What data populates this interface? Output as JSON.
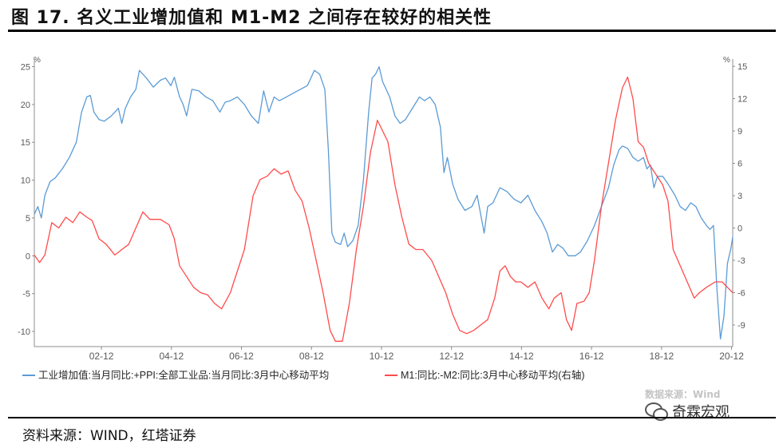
{
  "figure": {
    "title": "图 17. 名义工业增加值和 M1-M2 之间存在较好的相关性",
    "source": "资料来源：WIND，红塔证券",
    "watermark_data": "数据来源：Wind",
    "watermark_brand": "奇霖宏观"
  },
  "chart_data": {
    "type": "line",
    "left_axis": {
      "unit": "%",
      "ylim": [
        -12,
        26
      ],
      "ticks": [
        -10,
        -5,
        0,
        5,
        10,
        15,
        20,
        25
      ]
    },
    "right_axis": {
      "unit": "%",
      "ylim": [
        -11,
        15.67
      ],
      "ticks": [
        -9,
        -6,
        -3,
        0,
        3,
        6,
        9,
        12,
        15
      ]
    },
    "xlim": [
      2001.0,
      2020.95
    ],
    "x_ticks": [
      {
        "value": 2002.917,
        "label": "02-12"
      },
      {
        "value": 2004.917,
        "label": "04-12"
      },
      {
        "value": 2006.917,
        "label": "06-12"
      },
      {
        "value": 2008.917,
        "label": "08-12"
      },
      {
        "value": 2010.917,
        "label": "10-12"
      },
      {
        "value": 2012.917,
        "label": "12-12"
      },
      {
        "value": 2014.917,
        "label": "14-12"
      },
      {
        "value": 2016.917,
        "label": "16-12"
      },
      {
        "value": 2018.917,
        "label": "18-12"
      },
      {
        "value": 2020.917,
        "label": "20-12"
      }
    ],
    "grid": false,
    "legend_position": "bottom",
    "series": [
      {
        "name": "工业增加值:当月同比:+PPI:全部工业品:当月同比:3月中心移动平均",
        "axis": "left",
        "color": "#5b9bd5",
        "points": [
          [
            2001.0,
            5.5
          ],
          [
            2001.1,
            6.5
          ],
          [
            2001.2,
            5.0
          ],
          [
            2001.3,
            8.0
          ],
          [
            2001.45,
            9.8
          ],
          [
            2001.6,
            10.3
          ],
          [
            2001.8,
            11.5
          ],
          [
            2002.0,
            13.0
          ],
          [
            2002.2,
            15.0
          ],
          [
            2002.35,
            19.0
          ],
          [
            2002.5,
            21.0
          ],
          [
            2002.6,
            21.2
          ],
          [
            2002.7,
            19.0
          ],
          [
            2002.85,
            18.0
          ],
          [
            2003.0,
            17.8
          ],
          [
            2003.2,
            18.5
          ],
          [
            2003.4,
            19.5
          ],
          [
            2003.5,
            17.5
          ],
          [
            2003.6,
            19.5
          ],
          [
            2003.75,
            21.0
          ],
          [
            2003.9,
            22.0
          ],
          [
            2004.0,
            24.5
          ],
          [
            2004.2,
            23.5
          ],
          [
            2004.4,
            22.3
          ],
          [
            2004.6,
            23.2
          ],
          [
            2004.75,
            23.5
          ],
          [
            2004.9,
            22.5
          ],
          [
            2005.0,
            23.6
          ],
          [
            2005.15,
            21.0
          ],
          [
            2005.25,
            20.0
          ],
          [
            2005.35,
            18.5
          ],
          [
            2005.5,
            22.0
          ],
          [
            2005.7,
            21.8
          ],
          [
            2005.9,
            21.0
          ],
          [
            2006.1,
            20.5
          ],
          [
            2006.3,
            19.0
          ],
          [
            2006.45,
            20.3
          ],
          [
            2006.6,
            20.5
          ],
          [
            2006.8,
            21.0
          ],
          [
            2007.0,
            20.0
          ],
          [
            2007.2,
            18.5
          ],
          [
            2007.4,
            17.5
          ],
          [
            2007.55,
            21.8
          ],
          [
            2007.7,
            19.0
          ],
          [
            2007.85,
            21.0
          ],
          [
            2008.0,
            20.5
          ],
          [
            2008.2,
            21.0
          ],
          [
            2008.4,
            21.5
          ],
          [
            2008.6,
            22.0
          ],
          [
            2008.8,
            22.5
          ],
          [
            2009.0,
            24.5
          ],
          [
            2009.15,
            24.0
          ],
          [
            2009.3,
            22.0
          ],
          [
            2009.4,
            14.0
          ],
          [
            2009.5,
            3.0
          ],
          [
            2009.6,
            1.8
          ],
          [
            2009.75,
            1.5
          ],
          [
            2009.85,
            3.0
          ],
          [
            2009.95,
            1.2
          ],
          [
            2010.1,
            2.0
          ],
          [
            2010.25,
            4.0
          ],
          [
            2010.4,
            10.0
          ],
          [
            2010.55,
            19.0
          ],
          [
            2010.65,
            23.5
          ],
          [
            2010.75,
            24.0
          ],
          [
            2010.85,
            25.0
          ],
          [
            2010.95,
            23.0
          ],
          [
            2011.05,
            22.0
          ],
          [
            2011.15,
            21.0
          ],
          [
            2011.3,
            18.5
          ],
          [
            2011.45,
            17.5
          ],
          [
            2011.6,
            18.0
          ],
          [
            2011.8,
            19.5
          ],
          [
            2012.0,
            21.0
          ],
          [
            2012.15,
            20.5
          ],
          [
            2012.3,
            21.0
          ],
          [
            2012.45,
            20.0
          ],
          [
            2012.6,
            17.0
          ],
          [
            2012.7,
            11.0
          ],
          [
            2012.8,
            13.0
          ],
          [
            2012.95,
            9.5
          ],
          [
            2013.1,
            7.5
          ],
          [
            2013.3,
            6.0
          ],
          [
            2013.5,
            6.5
          ],
          [
            2013.65,
            8.0
          ],
          [
            2013.75,
            5.5
          ],
          [
            2013.85,
            3.0
          ],
          [
            2013.95,
            6.5
          ],
          [
            2014.1,
            7.0
          ],
          [
            2014.3,
            9.0
          ],
          [
            2014.5,
            8.5
          ],
          [
            2014.7,
            7.5
          ],
          [
            2014.9,
            7.0
          ],
          [
            2015.1,
            8.0
          ],
          [
            2015.3,
            6.0
          ],
          [
            2015.5,
            4.5
          ],
          [
            2015.65,
            3.0
          ],
          [
            2015.8,
            0.5
          ],
          [
            2015.95,
            1.5
          ],
          [
            2016.1,
            1.0
          ],
          [
            2016.25,
            0.0
          ],
          [
            2016.45,
            0.0
          ],
          [
            2016.6,
            0.5
          ],
          [
            2016.8,
            2.0
          ],
          [
            2017.0,
            4.0
          ],
          [
            2017.2,
            6.5
          ],
          [
            2017.4,
            9.0
          ],
          [
            2017.55,
            12.0
          ],
          [
            2017.7,
            14.0
          ],
          [
            2017.8,
            14.5
          ],
          [
            2017.95,
            14.2
          ],
          [
            2018.1,
            13.0
          ],
          [
            2018.25,
            12.5
          ],
          [
            2018.4,
            13.0
          ],
          [
            2018.5,
            11.5
          ],
          [
            2018.6,
            12.0
          ],
          [
            2018.7,
            9.0
          ],
          [
            2018.8,
            10.5
          ],
          [
            2018.95,
            10.5
          ],
          [
            2019.1,
            9.5
          ],
          [
            2019.3,
            8.0
          ],
          [
            2019.45,
            6.5
          ],
          [
            2019.6,
            6.0
          ],
          [
            2019.75,
            7.0
          ],
          [
            2019.9,
            6.5
          ],
          [
            2020.05,
            5.0
          ],
          [
            2020.2,
            4.0
          ],
          [
            2020.3,
            3.5
          ],
          [
            2020.4,
            4.0
          ],
          [
            2020.5,
            -4.5
          ],
          [
            2020.6,
            -11.0
          ],
          [
            2020.7,
            -8.0
          ],
          [
            2020.8,
            -1.0
          ],
          [
            2020.9,
            1.0
          ],
          [
            2020.95,
            2.5
          ],
          [
            2021.05,
            4.0
          ],
          [
            2021.2,
            5.0
          ],
          [
            2021.35,
            5.5
          ]
        ]
      },
      {
        "name": "M1:同比:-M2:同比:3月中心移动平均(右轴)",
        "axis": "right",
        "color": "#ff4b4b",
        "points": [
          [
            2001.0,
            -2.5
          ],
          [
            2001.15,
            -3.2
          ],
          [
            2001.3,
            -2.5
          ],
          [
            2001.5,
            0.5
          ],
          [
            2001.7,
            0.0
          ],
          [
            2001.9,
            1.0
          ],
          [
            2002.1,
            0.5
          ],
          [
            2002.3,
            1.5
          ],
          [
            2002.5,
            1.0
          ],
          [
            2002.65,
            0.7
          ],
          [
            2002.85,
            -1.0
          ],
          [
            2003.05,
            -1.5
          ],
          [
            2003.3,
            -2.5
          ],
          [
            2003.5,
            -2.0
          ],
          [
            2003.7,
            -1.5
          ],
          [
            2003.9,
            0.0
          ],
          [
            2004.1,
            1.5
          ],
          [
            2004.3,
            0.8
          ],
          [
            2004.6,
            0.8
          ],
          [
            2004.85,
            0.3
          ],
          [
            2005.0,
            -1.0
          ],
          [
            2005.15,
            -3.5
          ],
          [
            2005.35,
            -4.5
          ],
          [
            2005.55,
            -5.5
          ],
          [
            2005.75,
            -6.0
          ],
          [
            2005.95,
            -6.2
          ],
          [
            2006.15,
            -7.0
          ],
          [
            2006.35,
            -7.5
          ],
          [
            2006.6,
            -6.0
          ],
          [
            2006.8,
            -4.0
          ],
          [
            2007.0,
            -2.0
          ],
          [
            2007.25,
            3.0
          ],
          [
            2007.45,
            4.5
          ],
          [
            2007.65,
            4.8
          ],
          [
            2007.85,
            5.5
          ],
          [
            2008.05,
            5.0
          ],
          [
            2008.25,
            5.3
          ],
          [
            2008.45,
            3.5
          ],
          [
            2008.65,
            2.5
          ],
          [
            2008.85,
            0.0
          ],
          [
            2009.05,
            -3.0
          ],
          [
            2009.25,
            -6.0
          ],
          [
            2009.45,
            -9.5
          ],
          [
            2009.6,
            -10.5
          ],
          [
            2009.8,
            -10.5
          ],
          [
            2010.0,
            -7.0
          ],
          [
            2010.2,
            -2.0
          ],
          [
            2010.4,
            2.0
          ],
          [
            2010.6,
            7.0
          ],
          [
            2010.8,
            10.0
          ],
          [
            2010.95,
            9.0
          ],
          [
            2011.1,
            8.0
          ],
          [
            2011.3,
            4.0
          ],
          [
            2011.5,
            1.0
          ],
          [
            2011.7,
            -1.5
          ],
          [
            2011.9,
            -2.0
          ],
          [
            2012.1,
            -2.0
          ],
          [
            2012.35,
            -3.0
          ],
          [
            2012.55,
            -4.5
          ],
          [
            2012.75,
            -6.0
          ],
          [
            2012.95,
            -8.0
          ],
          [
            2013.15,
            -9.5
          ],
          [
            2013.35,
            -9.8
          ],
          [
            2013.55,
            -9.5
          ],
          [
            2013.75,
            -9.0
          ],
          [
            2013.95,
            -8.5
          ],
          [
            2014.15,
            -6.5
          ],
          [
            2014.3,
            -4.0
          ],
          [
            2014.45,
            -3.5
          ],
          [
            2014.6,
            -4.5
          ],
          [
            2014.75,
            -5.0
          ],
          [
            2014.9,
            -5.0
          ],
          [
            2015.1,
            -5.5
          ],
          [
            2015.3,
            -5.0
          ],
          [
            2015.5,
            -6.5
          ],
          [
            2015.7,
            -7.5
          ],
          [
            2015.85,
            -6.5
          ],
          [
            2016.05,
            -6.0
          ],
          [
            2016.2,
            -8.5
          ],
          [
            2016.35,
            -9.5
          ],
          [
            2016.5,
            -7.0
          ],
          [
            2016.7,
            -6.8
          ],
          [
            2016.85,
            -6.0
          ],
          [
            2017.0,
            -3.0
          ],
          [
            2017.2,
            2.0
          ],
          [
            2017.4,
            6.0
          ],
          [
            2017.6,
            10.0
          ],
          [
            2017.8,
            13.0
          ],
          [
            2017.95,
            14.0
          ],
          [
            2018.1,
            12.0
          ],
          [
            2018.25,
            8.0
          ],
          [
            2018.4,
            7.5
          ],
          [
            2018.55,
            6.0
          ],
          [
            2018.75,
            5.0
          ],
          [
            2018.95,
            4.0
          ],
          [
            2019.1,
            2.5
          ],
          [
            2019.25,
            -2.0
          ],
          [
            2019.45,
            -3.5
          ],
          [
            2019.65,
            -5.0
          ],
          [
            2019.85,
            -6.5
          ],
          [
            2020.0,
            -6.0
          ],
          [
            2020.2,
            -5.5
          ],
          [
            2020.45,
            -5.0
          ],
          [
            2020.65,
            -5.0
          ],
          [
            2020.8,
            -5.5
          ],
          [
            2020.95,
            -6.0
          ],
          [
            2021.1,
            -5.5
          ],
          [
            2021.25,
            -4.5
          ],
          [
            2021.4,
            -3.0
          ],
          [
            2021.55,
            -1.0
          ],
          [
            2021.65,
            1.0
          ]
        ]
      }
    ]
  }
}
